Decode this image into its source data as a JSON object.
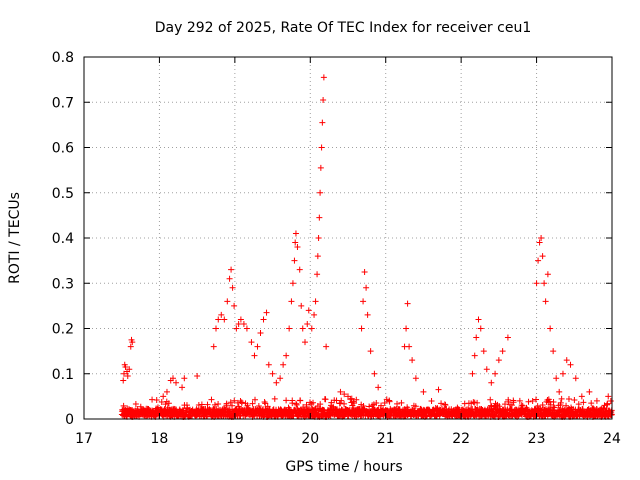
{
  "chart_data": {
    "type": "scatter",
    "title": "Day 292 of 2025, Rate Of TEC Index for receiver ceu1",
    "xlabel": "GPS time / hours",
    "ylabel": "ROTI / TECUs",
    "xlim": [
      17,
      24
    ],
    "ylim": [
      0,
      0.8
    ],
    "x_ticks": [
      "17",
      "18",
      "19",
      "20",
      "21",
      "22",
      "23",
      "24"
    ],
    "y_ticks": [
      "0",
      "0.1",
      "0.2",
      "0.3",
      "0.4",
      "0.5",
      "0.6",
      "0.7",
      "0.8"
    ],
    "grid": true,
    "marker": "+",
    "marker_color": "#ff0000",
    "series": [
      {
        "name": "ROTI",
        "points": [
          [
            17.52,
            0.085
          ],
          [
            17.53,
            0.1
          ],
          [
            17.54,
            0.12
          ],
          [
            17.55,
            0.115
          ],
          [
            17.57,
            0.105
          ],
          [
            17.58,
            0.095
          ],
          [
            17.6,
            0.11
          ],
          [
            17.62,
            0.16
          ],
          [
            17.63,
            0.175
          ],
          [
            17.64,
            0.17
          ],
          [
            18.05,
            0.05
          ],
          [
            18.1,
            0.06
          ],
          [
            18.15,
            0.085
          ],
          [
            18.18,
            0.09
          ],
          [
            18.22,
            0.08
          ],
          [
            18.3,
            0.07
          ],
          [
            18.33,
            0.09
          ],
          [
            18.5,
            0.095
          ],
          [
            18.72,
            0.16
          ],
          [
            18.75,
            0.2
          ],
          [
            18.78,
            0.22
          ],
          [
            18.82,
            0.23
          ],
          [
            18.86,
            0.22
          ],
          [
            18.9,
            0.26
          ],
          [
            18.93,
            0.31
          ],
          [
            18.95,
            0.33
          ],
          [
            18.97,
            0.29
          ],
          [
            18.99,
            0.25
          ],
          [
            19.02,
            0.2
          ],
          [
            19.05,
            0.21
          ],
          [
            19.08,
            0.22
          ],
          [
            19.12,
            0.21
          ],
          [
            19.16,
            0.2
          ],
          [
            19.22,
            0.17
          ],
          [
            19.26,
            0.14
          ],
          [
            19.3,
            0.16
          ],
          [
            19.34,
            0.19
          ],
          [
            19.38,
            0.22
          ],
          [
            19.42,
            0.235
          ],
          [
            19.45,
            0.12
          ],
          [
            19.5,
            0.1
          ],
          [
            19.55,
            0.08
          ],
          [
            19.6,
            0.09
          ],
          [
            19.64,
            0.12
          ],
          [
            19.68,
            0.14
          ],
          [
            19.72,
            0.2
          ],
          [
            19.75,
            0.26
          ],
          [
            19.77,
            0.3
          ],
          [
            19.79,
            0.35
          ],
          [
            19.8,
            0.39
          ],
          [
            19.81,
            0.41
          ],
          [
            19.83,
            0.38
          ],
          [
            19.86,
            0.33
          ],
          [
            19.88,
            0.25
          ],
          [
            19.9,
            0.2
          ],
          [
            19.93,
            0.17
          ],
          [
            19.96,
            0.21
          ],
          [
            19.98,
            0.24
          ],
          [
            20.02,
            0.2
          ],
          [
            20.05,
            0.23
          ],
          [
            20.07,
            0.26
          ],
          [
            20.09,
            0.32
          ],
          [
            20.1,
            0.36
          ],
          [
            20.11,
            0.4
          ],
          [
            20.12,
            0.445
          ],
          [
            20.13,
            0.5
          ],
          [
            20.14,
            0.555
          ],
          [
            20.15,
            0.6
          ],
          [
            20.16,
            0.655
          ],
          [
            20.17,
            0.705
          ],
          [
            20.18,
            0.755
          ],
          [
            20.21,
            0.16
          ],
          [
            20.4,
            0.06
          ],
          [
            20.45,
            0.055
          ],
          [
            20.5,
            0.05
          ],
          [
            20.55,
            0.045
          ],
          [
            20.68,
            0.2
          ],
          [
            20.7,
            0.26
          ],
          [
            20.72,
            0.325
          ],
          [
            20.74,
            0.29
          ],
          [
            20.76,
            0.23
          ],
          [
            20.8,
            0.15
          ],
          [
            20.85,
            0.1
          ],
          [
            20.9,
            0.07
          ],
          [
            21.25,
            0.16
          ],
          [
            21.27,
            0.2
          ],
          [
            21.29,
            0.255
          ],
          [
            21.31,
            0.16
          ],
          [
            21.35,
            0.13
          ],
          [
            21.4,
            0.09
          ],
          [
            21.5,
            0.06
          ],
          [
            21.7,
            0.065
          ],
          [
            22.15,
            0.1
          ],
          [
            22.18,
            0.14
          ],
          [
            22.2,
            0.18
          ],
          [
            22.23,
            0.22
          ],
          [
            22.26,
            0.2
          ],
          [
            22.3,
            0.15
          ],
          [
            22.34,
            0.11
          ],
          [
            22.4,
            0.08
          ],
          [
            22.45,
            0.1
          ],
          [
            22.5,
            0.13
          ],
          [
            22.55,
            0.15
          ],
          [
            22.62,
            0.18
          ],
          [
            23.0,
            0.3
          ],
          [
            23.02,
            0.35
          ],
          [
            23.04,
            0.39
          ],
          [
            23.06,
            0.4
          ],
          [
            23.08,
            0.36
          ],
          [
            23.1,
            0.3
          ],
          [
            23.12,
            0.26
          ],
          [
            23.15,
            0.32
          ],
          [
            23.18,
            0.2
          ],
          [
            23.22,
            0.15
          ],
          [
            23.26,
            0.09
          ],
          [
            23.3,
            0.06
          ],
          [
            23.35,
            0.1
          ],
          [
            23.4,
            0.13
          ],
          [
            23.45,
            0.12
          ],
          [
            23.52,
            0.09
          ],
          [
            23.6,
            0.05
          ],
          [
            23.7,
            0.06
          ],
          [
            23.8,
            0.04
          ],
          [
            23.9,
            0.03
          ],
          [
            23.95,
            0.05
          ]
        ]
      }
    ],
    "baseline_band": {
      "x_range": [
        17.5,
        24
      ],
      "typical": 0.015,
      "max": 0.045
    }
  }
}
